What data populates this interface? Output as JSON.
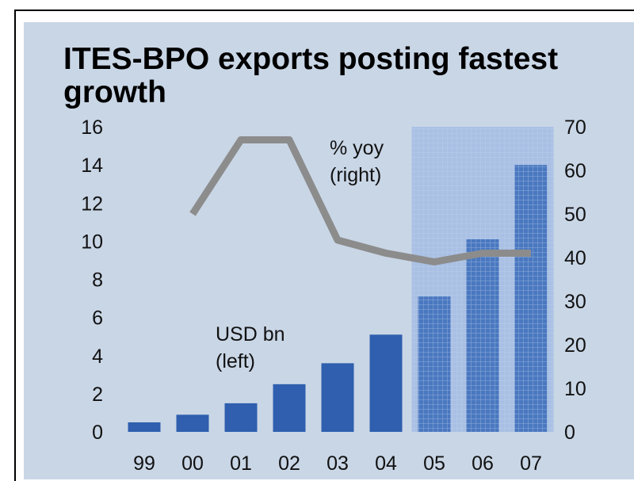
{
  "chart_data": {
    "type": "bar",
    "title": "ITES-BPO exports posting fastest growth",
    "categories": [
      "99",
      "00",
      "01",
      "02",
      "03",
      "04",
      "05",
      "06",
      "07"
    ],
    "series": [
      {
        "name": "USD bn (left)",
        "type": "bar",
        "axis": "left",
        "label_lines": [
          "USD bn",
          "(left)"
        ],
        "values": [
          0.5,
          0.9,
          1.5,
          2.5,
          3.6,
          5.1,
          7.1,
          10.1,
          14.0
        ],
        "color": "#2f5fae"
      },
      {
        "name": "% yoy (right)",
        "type": "line",
        "axis": "right",
        "label_lines": [
          "% yoy",
          "(right)"
        ],
        "values": [
          null,
          50,
          67,
          67,
          44,
          41,
          39,
          41,
          41
        ],
        "color": "#8c8c8c"
      }
    ],
    "forecast_categories": [
      "05",
      "06",
      "07"
    ],
    "y_left": {
      "min": 0,
      "max": 16,
      "ticks": [
        0,
        2,
        4,
        6,
        8,
        10,
        12,
        14,
        16
      ]
    },
    "y_right": {
      "min": 0,
      "max": 70,
      "ticks": [
        0,
        10,
        20,
        30,
        40,
        50,
        60,
        70
      ]
    },
    "grid": false,
    "colors": {
      "background": "#c9d6e6",
      "bar": "#2f5fae",
      "forecast_bar": "#4a78c0",
      "forecast_shade": "#a9c0e4",
      "line": "#8c8c8c"
    }
  }
}
